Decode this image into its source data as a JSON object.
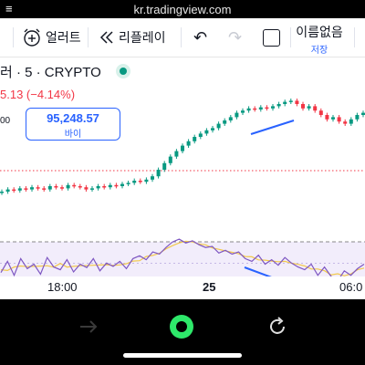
{
  "browser": {
    "url": "kr.tradingview.com",
    "menu_glyph": "≡"
  },
  "toolbar": {
    "alert_label": "얼러트",
    "replay_label": "리플레이",
    "undo_glyph": "↶",
    "redo_glyph": "↷",
    "layout_name": "이름없음",
    "save_label": "저장"
  },
  "symbol": {
    "title": "러 · 5 · CRYPTO",
    "change": "5.13 (−4.14%)",
    "left_price_fragment": "00"
  },
  "buy": {
    "price": "95,248.57",
    "label": "바이"
  },
  "axis": {
    "labels": [
      "18:00",
      "25",
      "06:0"
    ]
  },
  "colors": {
    "up": "#089981",
    "down": "#f23645",
    "accent": "#2962ff",
    "oscillator": "#7e57c2",
    "signal": "#f2c94c"
  },
  "icons": {
    "alert": "alarm-clock-plus-icon",
    "replay": "replay-rewind-icon",
    "undo": "undo-icon",
    "redo": "redo-icon",
    "layout": "square-layout-icon",
    "nav_forward": "arrow-right-icon",
    "nav_record": "record-icon",
    "nav_reload": "reload-icon"
  },
  "chart_data": {
    "type": "candlestick",
    "x_ticks": [
      "18:00",
      "25",
      "06:0"
    ],
    "price_shape": [
      0.1,
      0.12,
      0.11,
      0.13,
      0.12,
      0.14,
      0.13,
      0.12,
      0.15,
      0.14,
      0.13,
      0.16,
      0.15,
      0.14,
      0.12,
      0.13,
      0.15,
      0.14,
      0.16,
      0.15,
      0.17,
      0.18,
      0.2,
      0.19,
      0.21,
      0.24,
      0.3,
      0.36,
      0.42,
      0.47,
      0.52,
      0.56,
      0.6,
      0.63,
      0.66,
      0.68,
      0.72,
      0.75,
      0.78,
      0.82,
      0.84,
      0.86,
      0.85,
      0.87,
      0.86,
      0.88,
      0.9,
      0.92,
      0.93,
      0.9,
      0.86,
      0.88,
      0.84,
      0.8,
      0.76,
      0.78,
      0.74,
      0.72,
      0.76,
      0.8,
      0.82
    ],
    "oscillator_shape": [
      0.35,
      0.55,
      0.3,
      0.6,
      0.42,
      0.5,
      0.32,
      0.62,
      0.45,
      0.4,
      0.58,
      0.36,
      0.5,
      0.44,
      0.6,
      0.38,
      0.52,
      0.46,
      0.55,
      0.42,
      0.6,
      0.65,
      0.58,
      0.72,
      0.68,
      0.8,
      0.9,
      0.95,
      0.88,
      0.92,
      0.85,
      0.8,
      0.82,
      0.7,
      0.75,
      0.68,
      0.72,
      0.6,
      0.55,
      0.66,
      0.5,
      0.58,
      0.48,
      0.62,
      0.52,
      0.45,
      0.4,
      0.5,
      0.3,
      0.45,
      0.28,
      0.2,
      0.38,
      0.3,
      0.42,
      0.5
    ],
    "annotations": [
      {
        "type": "trendline",
        "pane": "price",
        "color": "#2962ff",
        "direction": "up"
      },
      {
        "type": "trendline",
        "pane": "oscillator",
        "color": "#2962ff",
        "direction": "down"
      }
    ]
  }
}
